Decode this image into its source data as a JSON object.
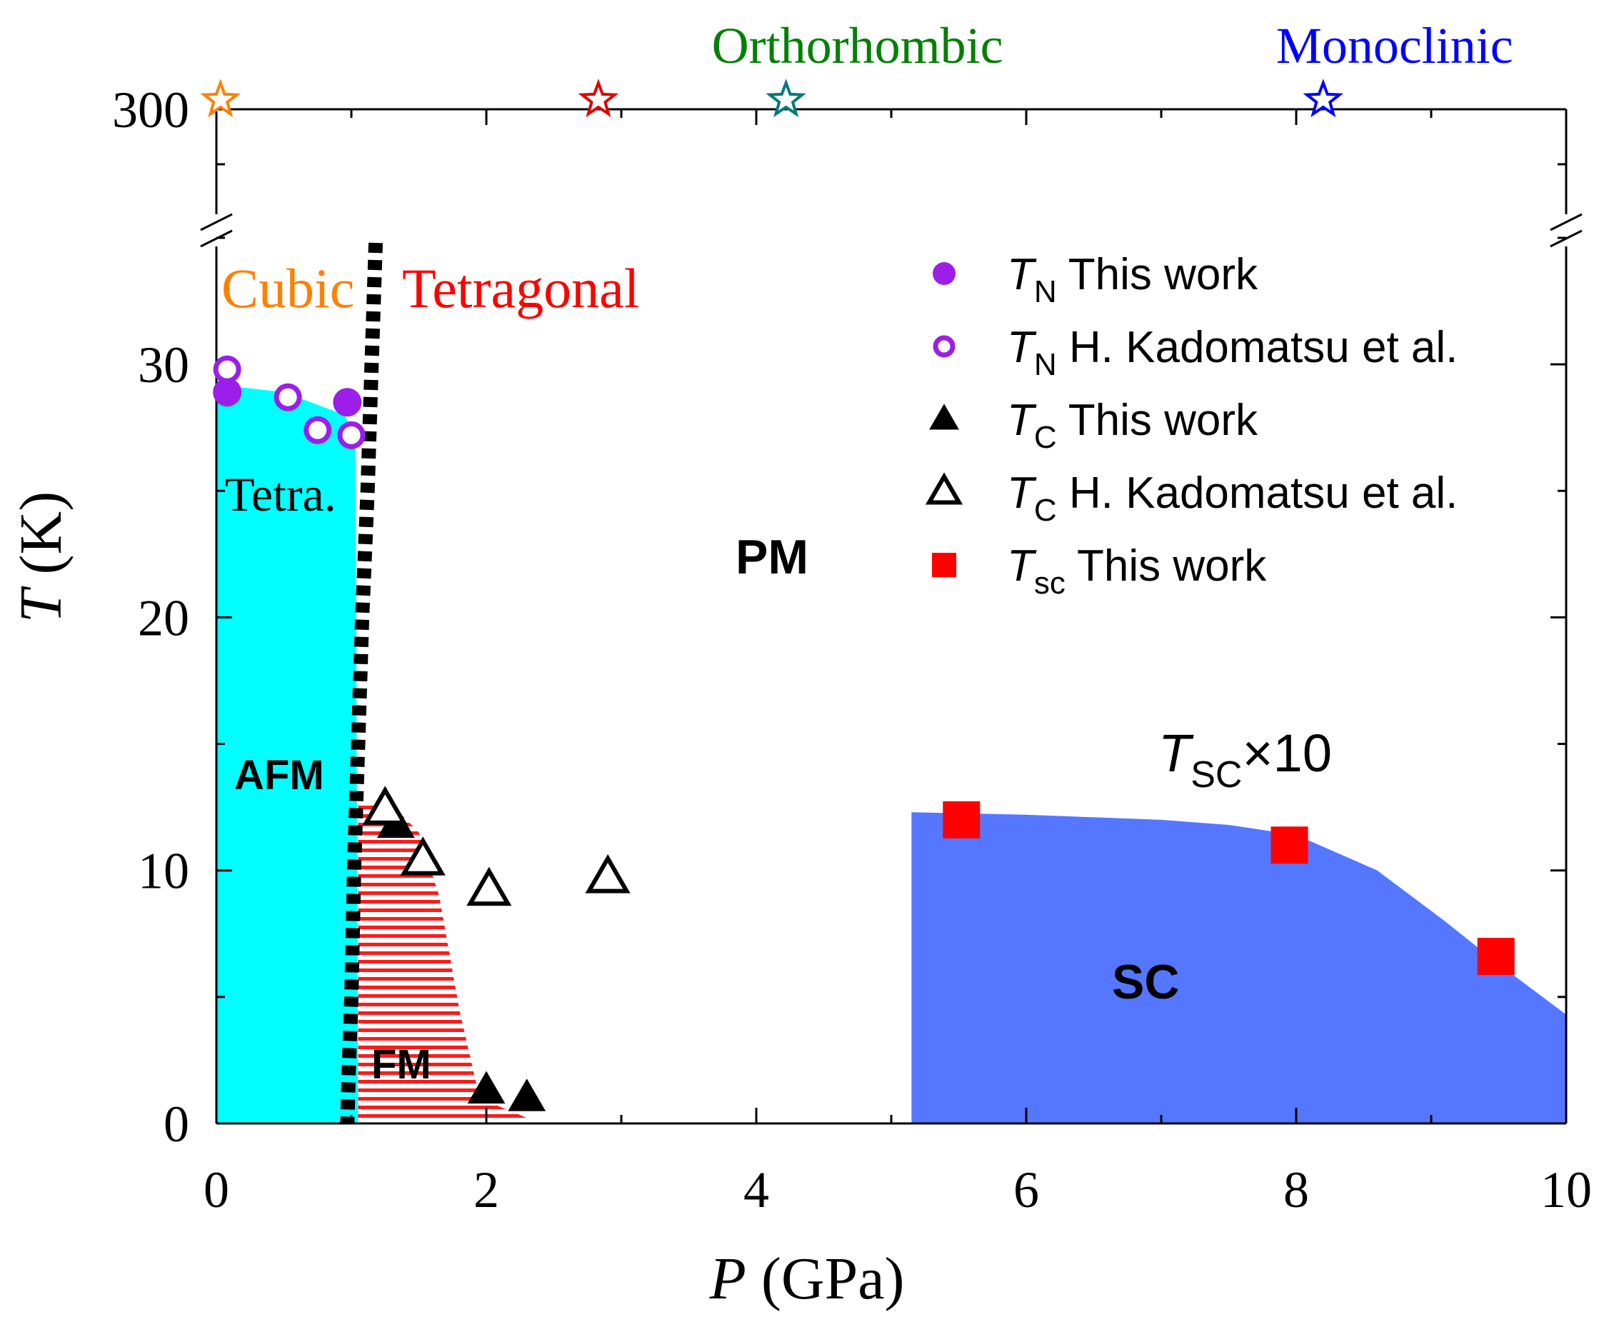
{
  "chart_data": {
    "type": "scatter",
    "title": "",
    "xlabel": {
      "italic": "P",
      "rest": " (GPa)"
    },
    "ylabel": {
      "italic": "T",
      "rest": " (K)"
    },
    "xlim": [
      0,
      10
    ],
    "ylim_lower": [
      0,
      35
    ],
    "y_break_upper_value": 300,
    "x_ticks": [
      "0",
      "2",
      "4",
      "6",
      "8",
      "10"
    ],
    "y_ticks": [
      "0",
      "10",
      "20",
      "30"
    ],
    "y_top_tick": "300",
    "grid": false,
    "legend_position": "top-right",
    "legend": [
      {
        "sym": "T",
        "sub": "N",
        "text": " This work",
        "marker": "filled-circle",
        "color": "#9b1fe8"
      },
      {
        "sym": "T",
        "sub": "N",
        "text": " H. Kadomatsu et al.",
        "marker": "open-circle",
        "color": "#9b1fe8"
      },
      {
        "sym": "T",
        "sub": "C",
        "text": " This work",
        "marker": "filled-triangle",
        "color": "#000000"
      },
      {
        "sym": "T",
        "sub": "C",
        "text": " H. Kadomatsu et al.",
        "marker": "open-triangle",
        "color": "#000000"
      },
      {
        "sym": "T",
        "sub": "sc",
        "text": " This work",
        "marker": "filled-square",
        "color": "#ff0000"
      }
    ],
    "series": [
      {
        "name": "TN This work",
        "marker": "filled-circle",
        "color": "#9b1fe8",
        "points": [
          {
            "x": 0.08,
            "y": 28.9
          },
          {
            "x": 0.97,
            "y": 28.5
          }
        ]
      },
      {
        "name": "TN H. Kadomatsu et al.",
        "marker": "open-circle",
        "color": "#9b1fe8",
        "points": [
          {
            "x": 0.08,
            "y": 29.8
          },
          {
            "x": 0.53,
            "y": 28.7
          },
          {
            "x": 0.75,
            "y": 27.4
          },
          {
            "x": 1.0,
            "y": 27.2
          }
        ]
      },
      {
        "name": "TC This work",
        "marker": "filled-triangle",
        "color": "#000000",
        "points": [
          {
            "x": 1.33,
            "y": 11.8
          },
          {
            "x": 2.0,
            "y": 1.3
          },
          {
            "x": 2.3,
            "y": 1.0
          }
        ]
      },
      {
        "name": "TC H. Kadomatsu et al.",
        "marker": "open-triangle",
        "color": "#000000",
        "points": [
          {
            "x": 1.25,
            "y": 12.4
          },
          {
            "x": 1.53,
            "y": 10.4
          },
          {
            "x": 2.02,
            "y": 9.2
          },
          {
            "x": 2.9,
            "y": 9.7
          }
        ]
      },
      {
        "name": "Tsc This work (x10)",
        "marker": "filled-square",
        "color": "#ff0000",
        "points": [
          {
            "x": 5.52,
            "y": 12.0
          },
          {
            "x": 7.95,
            "y": 11.0
          },
          {
            "x": 9.48,
            "y": 6.6
          }
        ]
      }
    ],
    "structure_markers": [
      {
        "x": 0.03,
        "color": "#ff8000",
        "label": ""
      },
      {
        "x": 2.83,
        "color": "#e00000",
        "label": ""
      },
      {
        "x": 4.22,
        "color": "#007a7a",
        "label": "Orthorhombic",
        "label_color": "#008000"
      },
      {
        "x": 8.2,
        "color": "#0000ff",
        "label": "Monoclinic",
        "label_color": "#0000ff"
      }
    ],
    "regions": [
      {
        "name": "AFM",
        "color": "#00ffff",
        "boundary": [
          [
            0,
            29.2
          ],
          [
            0.5,
            28.9
          ],
          [
            0.95,
            28.0
          ],
          [
            1.03,
            27.0
          ],
          [
            1.05,
            0
          ]
        ]
      },
      {
        "name": "FM",
        "color": "#ff0000",
        "style": "horizontal-hatch",
        "boundary": [
          [
            1.05,
            12.6
          ],
          [
            1.3,
            12.6
          ],
          [
            1.5,
            11.5
          ],
          [
            1.65,
            9.0
          ],
          [
            1.8,
            4.5
          ],
          [
            1.95,
            1.0
          ],
          [
            2.4,
            0
          ]
        ]
      },
      {
        "name": "SC",
        "color": "#5577ff",
        "boundary": [
          [
            5.15,
            12.3
          ],
          [
            6.0,
            12.2
          ],
          [
            7.0,
            12.0
          ],
          [
            7.5,
            11.8
          ],
          [
            8.0,
            11.4
          ],
          [
            8.6,
            10.0
          ],
          [
            9.1,
            8.0
          ],
          [
            9.5,
            6.3
          ],
          [
            10.0,
            4.3
          ]
        ]
      }
    ],
    "phase_boundary_dashed": [
      [
        1.18,
        34.8
      ],
      [
        1.15,
        30
      ],
      [
        1.12,
        25
      ],
      [
        1.08,
        20
      ],
      [
        1.05,
        15
      ],
      [
        1.02,
        10
      ],
      [
        1.0,
        5
      ],
      [
        0.98,
        2
      ],
      [
        0.97,
        0
      ]
    ],
    "annotations": {
      "cubic": "Cubic",
      "tetragonal": "Tetragonal",
      "tetra_short": "Tetra.",
      "afm": "AFM",
      "fm": "FM",
      "pm": "PM",
      "sc": "SC",
      "tsc_scale": {
        "sym": "T",
        "sub": "SC",
        "rest": "×10"
      }
    },
    "colors": {
      "cubic": "#ff8000",
      "tetragonal": "#ff0000",
      "axis": "#000000"
    }
  }
}
